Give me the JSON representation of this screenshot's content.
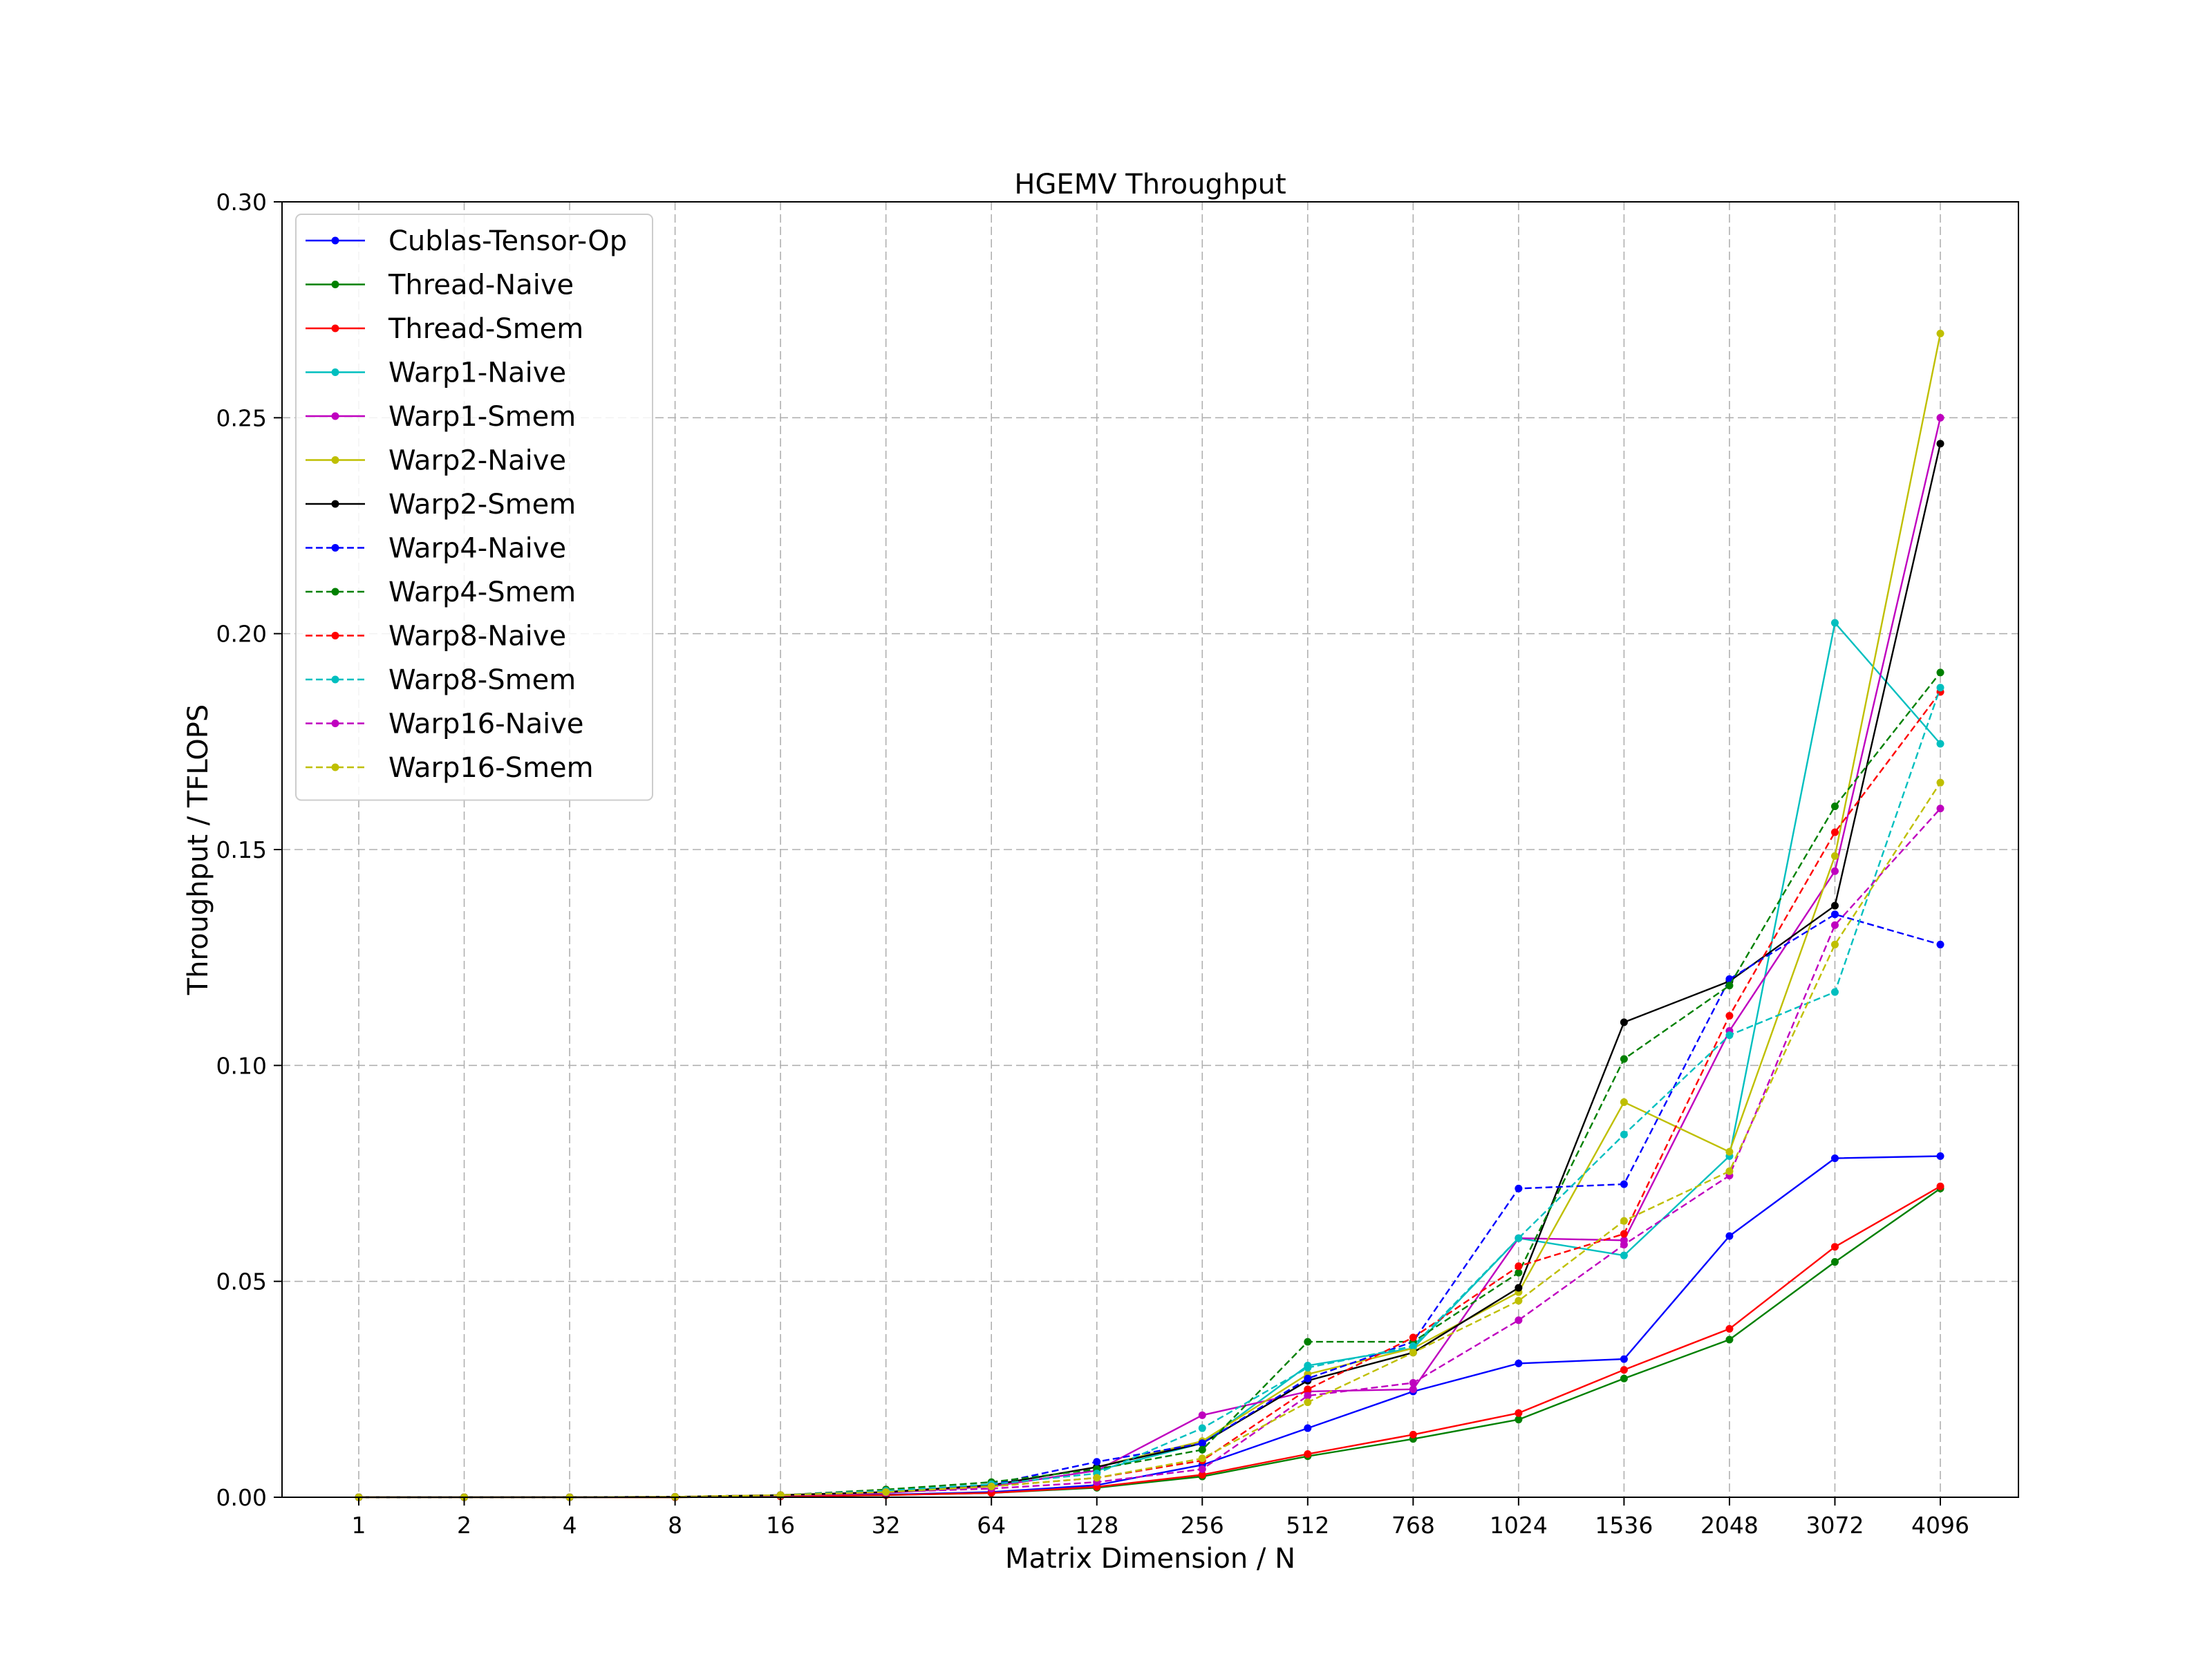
{
  "chart_data": {
    "type": "line",
    "title": "HGEMV Throughput",
    "xlabel": "Matrix Dimension / N",
    "ylabel": "Throughput / TFLOPS",
    "categories": [
      "1",
      "2",
      "4",
      "8",
      "16",
      "32",
      "64",
      "128",
      "256",
      "512",
      "768",
      "1024",
      "1536",
      "2048",
      "3072",
      "4096"
    ],
    "ylim": [
      0,
      0.3
    ],
    "yticks": [
      "0.00",
      "0.05",
      "0.10",
      "0.15",
      "0.20",
      "0.25",
      "0.30"
    ],
    "grid": true,
    "legend_position": "upper-left",
    "series": [
      {
        "name": "Cublas-Tensor-Op",
        "color": "#0000ff",
        "dash": "solid",
        "values": [
          0,
          0,
          0,
          0.0001,
          0.0003,
          0.0006,
          0.0012,
          0.0028,
          0.0075,
          0.016,
          0.0245,
          0.031,
          0.032,
          0.0605,
          0.0785,
          0.079
        ]
      },
      {
        "name": "Thread-Naive",
        "color": "#008000",
        "dash": "solid",
        "values": [
          0,
          0,
          0,
          0,
          0.0002,
          0.0005,
          0.001,
          0.0022,
          0.0048,
          0.0095,
          0.0135,
          0.018,
          0.0275,
          0.0365,
          0.0545,
          0.0715
        ]
      },
      {
        "name": "Thread-Smem",
        "color": "#ff0000",
        "dash": "solid",
        "values": [
          0,
          0,
          0,
          0,
          0.0002,
          0.0005,
          0.001,
          0.0024,
          0.0052,
          0.01,
          0.0145,
          0.0195,
          0.0295,
          0.039,
          0.058,
          0.072
        ]
      },
      {
        "name": "Warp1-Naive",
        "color": "#00bfbf",
        "dash": "solid",
        "values": [
          0,
          0,
          0,
          0.0001,
          0.0004,
          0.001,
          0.0025,
          0.0062,
          0.0125,
          0.0305,
          0.0345,
          0.06,
          0.056,
          0.079,
          0.2025,
          0.1745
        ]
      },
      {
        "name": "Warp1-Smem",
        "color": "#bf00bf",
        "dash": "solid",
        "values": [
          0,
          0,
          0,
          0.0001,
          0.0004,
          0.001,
          0.0025,
          0.0062,
          0.019,
          0.0245,
          0.025,
          0.06,
          0.0595,
          0.108,
          0.145,
          0.25
        ]
      },
      {
        "name": "Warp2-Naive",
        "color": "#bfbf00",
        "dash": "solid",
        "values": [
          0,
          0,
          0,
          0.0001,
          0.0005,
          0.0012,
          0.0028,
          0.007,
          0.013,
          0.0285,
          0.0345,
          0.0475,
          0.0915,
          0.08,
          0.1485,
          0.2695
        ]
      },
      {
        "name": "Warp2-Smem",
        "color": "#000000",
        "dash": "solid",
        "values": [
          0,
          0,
          0,
          0.0001,
          0.0005,
          0.0012,
          0.0028,
          0.007,
          0.0125,
          0.027,
          0.0335,
          0.0485,
          0.11,
          0.1195,
          0.137,
          0.244
        ]
      },
      {
        "name": "Warp4-Naive",
        "color": "#0000ff",
        "dash": "dashed",
        "values": [
          0,
          0,
          0,
          0.0001,
          0.0005,
          0.0014,
          0.003,
          0.0082,
          0.0125,
          0.0275,
          0.036,
          0.0715,
          0.0725,
          0.12,
          0.135,
          0.128
        ]
      },
      {
        "name": "Warp4-Smem",
        "color": "#008000",
        "dash": "dashed",
        "values": [
          0,
          0,
          0,
          0.0001,
          0.0005,
          0.0018,
          0.0035,
          0.0065,
          0.011,
          0.036,
          0.036,
          0.052,
          0.1015,
          0.1185,
          0.16,
          0.191
        ]
      },
      {
        "name": "Warp8-Naive",
        "color": "#ff0000",
        "dash": "dashed",
        "values": [
          0,
          0,
          0,
          0.0001,
          0.0005,
          0.0015,
          0.0025,
          0.0045,
          0.0085,
          0.025,
          0.037,
          0.0535,
          0.061,
          0.1115,
          0.154,
          0.1865
        ]
      },
      {
        "name": "Warp8-Smem",
        "color": "#00bfbf",
        "dash": "dashed",
        "values": [
          0,
          0,
          0,
          0.0001,
          0.0005,
          0.0015,
          0.003,
          0.0055,
          0.016,
          0.03,
          0.035,
          0.06,
          0.084,
          0.107,
          0.117,
          0.1875
        ]
      },
      {
        "name": "Warp16-Naive",
        "color": "#bf00bf",
        "dash": "dashed",
        "values": [
          0,
          0,
          0,
          0.0001,
          0.0005,
          0.0012,
          0.002,
          0.0035,
          0.0065,
          0.0235,
          0.0265,
          0.041,
          0.0585,
          0.0745,
          0.1325,
          0.1595
        ]
      },
      {
        "name": "Warp16-Smem",
        "color": "#bfbf00",
        "dash": "dashed",
        "values": [
          0,
          0,
          0,
          0.0001,
          0.0005,
          0.0012,
          0.0025,
          0.0045,
          0.009,
          0.022,
          0.0335,
          0.0455,
          0.064,
          0.0755,
          0.128,
          0.1655
        ]
      }
    ]
  }
}
